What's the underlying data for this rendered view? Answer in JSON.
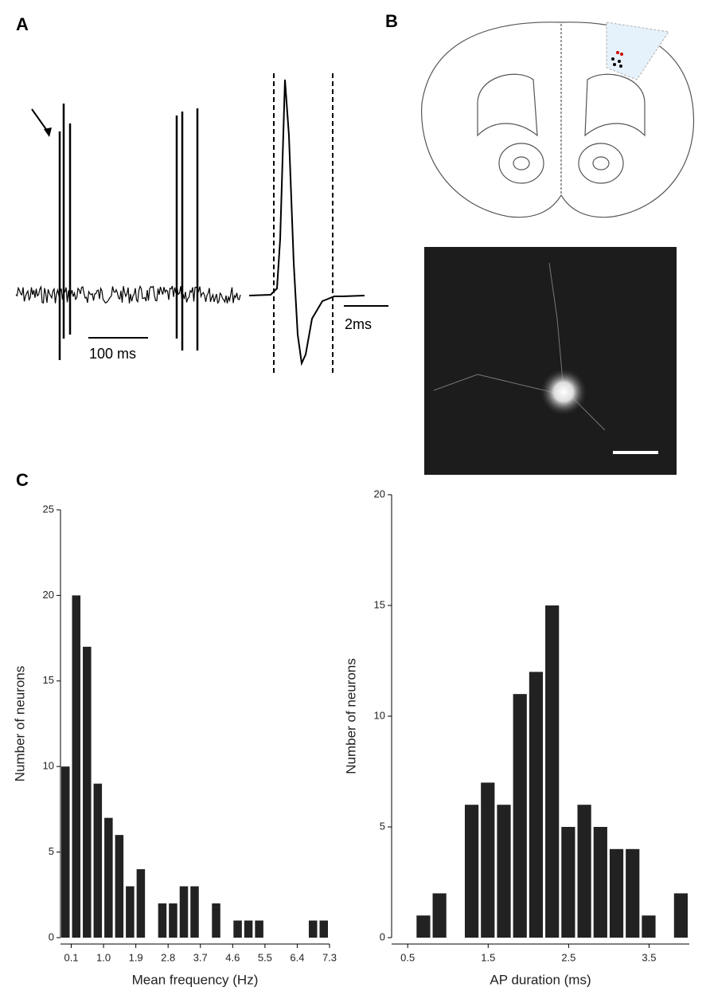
{
  "panels": {
    "a": "A",
    "b": "B",
    "c": "C"
  },
  "scale_bars": {
    "trace": "100 ms",
    "spike": "2ms"
  },
  "chart_data": [
    {
      "type": "histogram",
      "xlabel": "Mean frequency (Hz)",
      "ylabel": "Number of neurons",
      "color": "#222222",
      "bins": [
        -0.2,
        0.1,
        0.4,
        0.7,
        1.0,
        1.3,
        1.6,
        1.9,
        2.2,
        2.5,
        2.8,
        3.1,
        3.4,
        3.7,
        4.0,
        4.3,
        4.6,
        4.9,
        5.2,
        5.5,
        5.8,
        6.1,
        6.4,
        6.7,
        7.0,
        7.3
      ],
      "counts": [
        10,
        20,
        17,
        9,
        7,
        6,
        3,
        4,
        0,
        2,
        2,
        3,
        3,
        0,
        2,
        0,
        1,
        1,
        1,
        0,
        0,
        0,
        0,
        1,
        1
      ],
      "xlim": [
        -0.2,
        7.3
      ],
      "xticks": [
        0.1,
        {
          "value": 1,
          "label": "1.0"
        },
        1.9,
        2.8,
        3.7,
        4.6,
        5.5,
        6.4,
        7.3
      ],
      "ylim": [
        0,
        25
      ],
      "yticks": [
        0,
        5,
        10,
        15,
        20,
        25
      ]
    },
    {
      "type": "histogram",
      "xlabel": "AP duration (ms)",
      "ylabel": "Number of neurons",
      "color": "#222222",
      "bins": [
        0.6,
        0.8,
        1.0,
        1.2,
        1.4,
        1.6,
        1.8,
        2.0,
        2.2,
        2.4,
        2.6,
        2.8,
        3.0,
        3.2,
        3.4,
        3.6,
        3.8,
        4.0
      ],
      "counts": [
        1,
        2,
        0,
        6,
        7,
        6,
        11,
        12,
        15,
        5,
        6,
        5,
        4,
        4,
        1,
        0,
        2
      ],
      "xlim": [
        0.3,
        4.0
      ],
      "xticks": [
        0.5,
        1.5,
        2.5,
        3.5
      ],
      "ylim": [
        0,
        20
      ],
      "yticks": [
        0,
        5,
        10,
        15,
        20
      ]
    }
  ]
}
